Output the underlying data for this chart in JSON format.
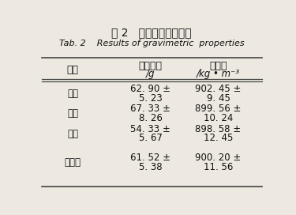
{
  "title_cn": "表 2   比重物理特性结果",
  "title_en": "Tab. 2    Results of gravimetric  properties",
  "header_col0": "类别",
  "header_col1_line1": "干粒质量",
  "header_col1_line2": "/g",
  "header_col2_line1": "真密度",
  "header_col2_line2": "/kg • m⁻³",
  "rows": [
    {
      "label": "黑牛",
      "v1": "62. 90 ±",
      "v2": "5. 23",
      "v3": "902. 45 ±",
      "v4": "9. 45"
    },
    {
      "label": "蜜红",
      "v1": "67. 33 ±",
      "v2": "8. 26",
      "v3": "899. 56 ±",
      "v4": "10. 24"
    },
    {
      "label": "花皮",
      "v1": "54. 33 ±",
      "v2": "5. 67",
      "v3": "898. 58 ±",
      "v4": "12. 45"
    },
    {
      "label": "平均值",
      "v1": "61. 52 ±",
      "v2": "5. 38",
      "v3": "900. 20 ±",
      "v4": "11. 56"
    }
  ],
  "bg_color": "#ede9e0",
  "text_color": "#111111",
  "line_color": "#444444",
  "fig_width": 3.75,
  "fig_height": 2.72,
  "dpi": 100
}
